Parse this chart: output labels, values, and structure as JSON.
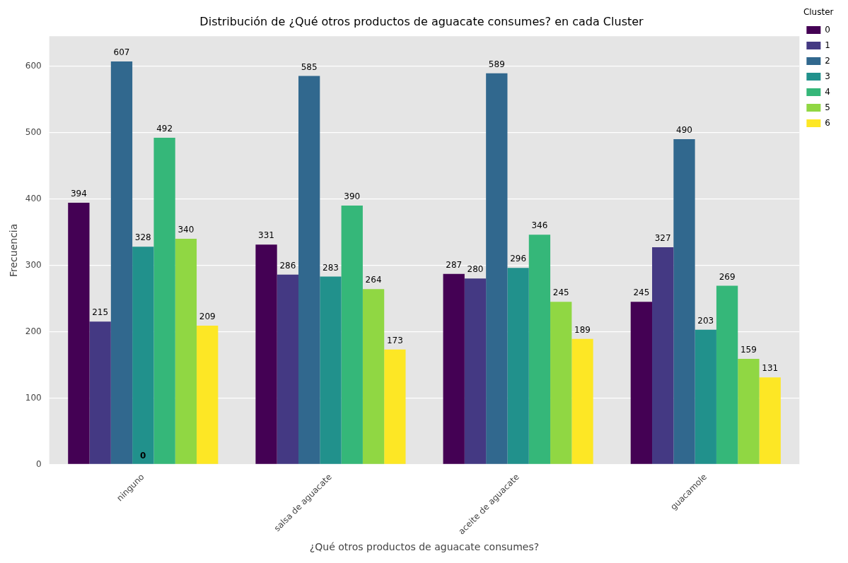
{
  "chart_data": {
    "type": "bar",
    "title": "Distribución de ¿Qué otros productos de aguacate consumes? en cada Cluster",
    "xlabel": "¿Qué otros productos de aguacate consumes?",
    "ylabel": "Frecuencia",
    "legend_title": "Cluster",
    "legend": "top right",
    "grid": "y",
    "data_labels": true,
    "categories": [
      "ninguno",
      "salsa de aguacate",
      "aceite de aguacate",
      "guacamole"
    ],
    "ylim": [
      0,
      645
    ],
    "yticks": [
      0,
      100,
      200,
      300,
      400,
      500,
      600
    ],
    "series": [
      {
        "name": "0",
        "color": "#440154",
        "values": [
          394,
          331,
          287,
          245
        ]
      },
      {
        "name": "1",
        "color": "#443983",
        "values": [
          215,
          286,
          280,
          327
        ]
      },
      {
        "name": "2",
        "color": "#31688e",
        "values": [
          607,
          585,
          589,
          490
        ]
      },
      {
        "name": "3",
        "color": "#21918c",
        "values": [
          328,
          283,
          296,
          203
        ]
      },
      {
        "name": "4",
        "color": "#35b779",
        "values": [
          492,
          390,
          346,
          269
        ]
      },
      {
        "name": "5",
        "color": "#90d743",
        "values": [
          340,
          264,
          245,
          159
        ]
      },
      {
        "name": "6",
        "color": "#fde725",
        "values": [
          209,
          173,
          189,
          131
        ]
      }
    ],
    "annotations": [
      {
        "text": "0",
        "x": "ninguno",
        "y": 0
      }
    ]
  }
}
